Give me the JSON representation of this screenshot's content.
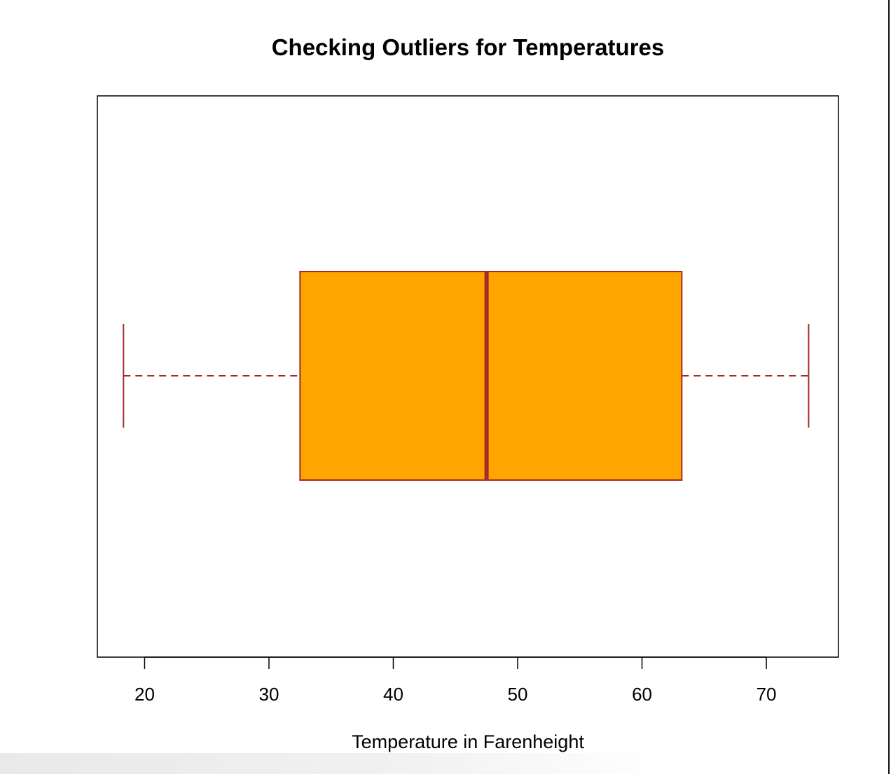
{
  "chart_data": {
    "type": "boxplot",
    "orientation": "horizontal",
    "title": "Checking Outliers for Temperatures",
    "xlabel": "Temperature in Farenheight",
    "ylabel": "",
    "xlim": [
      16.2,
      75.8
    ],
    "ticks": [
      20,
      30,
      40,
      50,
      60,
      70
    ],
    "tick_labels": [
      "20",
      "30",
      "40",
      "50",
      "60",
      "70"
    ],
    "grid": false,
    "series": [
      {
        "min": 18.3,
        "q1": 32.5,
        "median": 47.5,
        "q3": 63.2,
        "max": 73.4,
        "outliers": []
      }
    ],
    "colors": {
      "box_fill": "#FFA500",
      "border": "#A52A2A"
    }
  }
}
